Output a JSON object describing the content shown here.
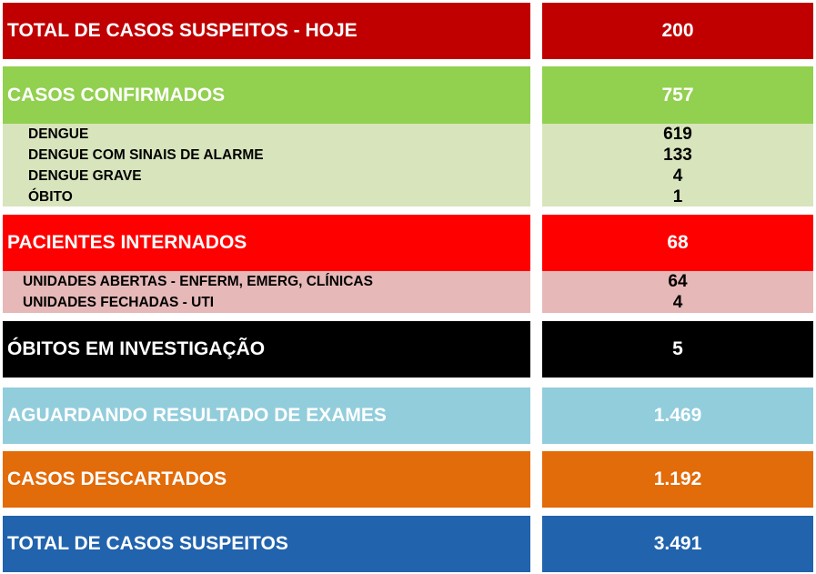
{
  "colors": {
    "red_dark": "#c00000",
    "green": "#92d050",
    "green_light": "#d8e4bc",
    "red": "#ff0000",
    "pink": "#e6b8b7",
    "black": "#000000",
    "light_blue": "#92cddc",
    "orange": "#e26b0a",
    "blue": "#2163ad"
  },
  "rows": {
    "total_hoje": {
      "label": "TOTAL DE CASOS SUSPEITOS - HOJE",
      "value": "200"
    },
    "confirmados": {
      "label": "CASOS CONFIRMADOS",
      "value": "757",
      "items": [
        {
          "label": "DENGUE",
          "value": "619"
        },
        {
          "label": "DENGUE COM SINAIS DE ALARME",
          "value": "133"
        },
        {
          "label": "DENGUE GRAVE",
          "value": "4"
        },
        {
          "label": "ÓBITO",
          "value": "1"
        }
      ]
    },
    "internados": {
      "label": "PACIENTES INTERNADOS",
      "value": "68",
      "items": [
        {
          "label": "UNIDADES ABERTAS - ENFERM, EMERG, CLÍNICAS",
          "value": "64"
        },
        {
          "label": "UNIDADES FECHADAS - UTI",
          "value": "4"
        }
      ]
    },
    "obitos": {
      "label": "ÓBITOS EM INVESTIGAÇÃO",
      "value": "5"
    },
    "aguardando": {
      "label": "AGUARDANDO RESULTADO DE EXAMES",
      "value": "1.469"
    },
    "descartados": {
      "label": "CASOS DESCARTADOS",
      "value": "1.192"
    },
    "total": {
      "label": "TOTAL DE CASOS SUSPEITOS",
      "value": "3.491"
    }
  }
}
